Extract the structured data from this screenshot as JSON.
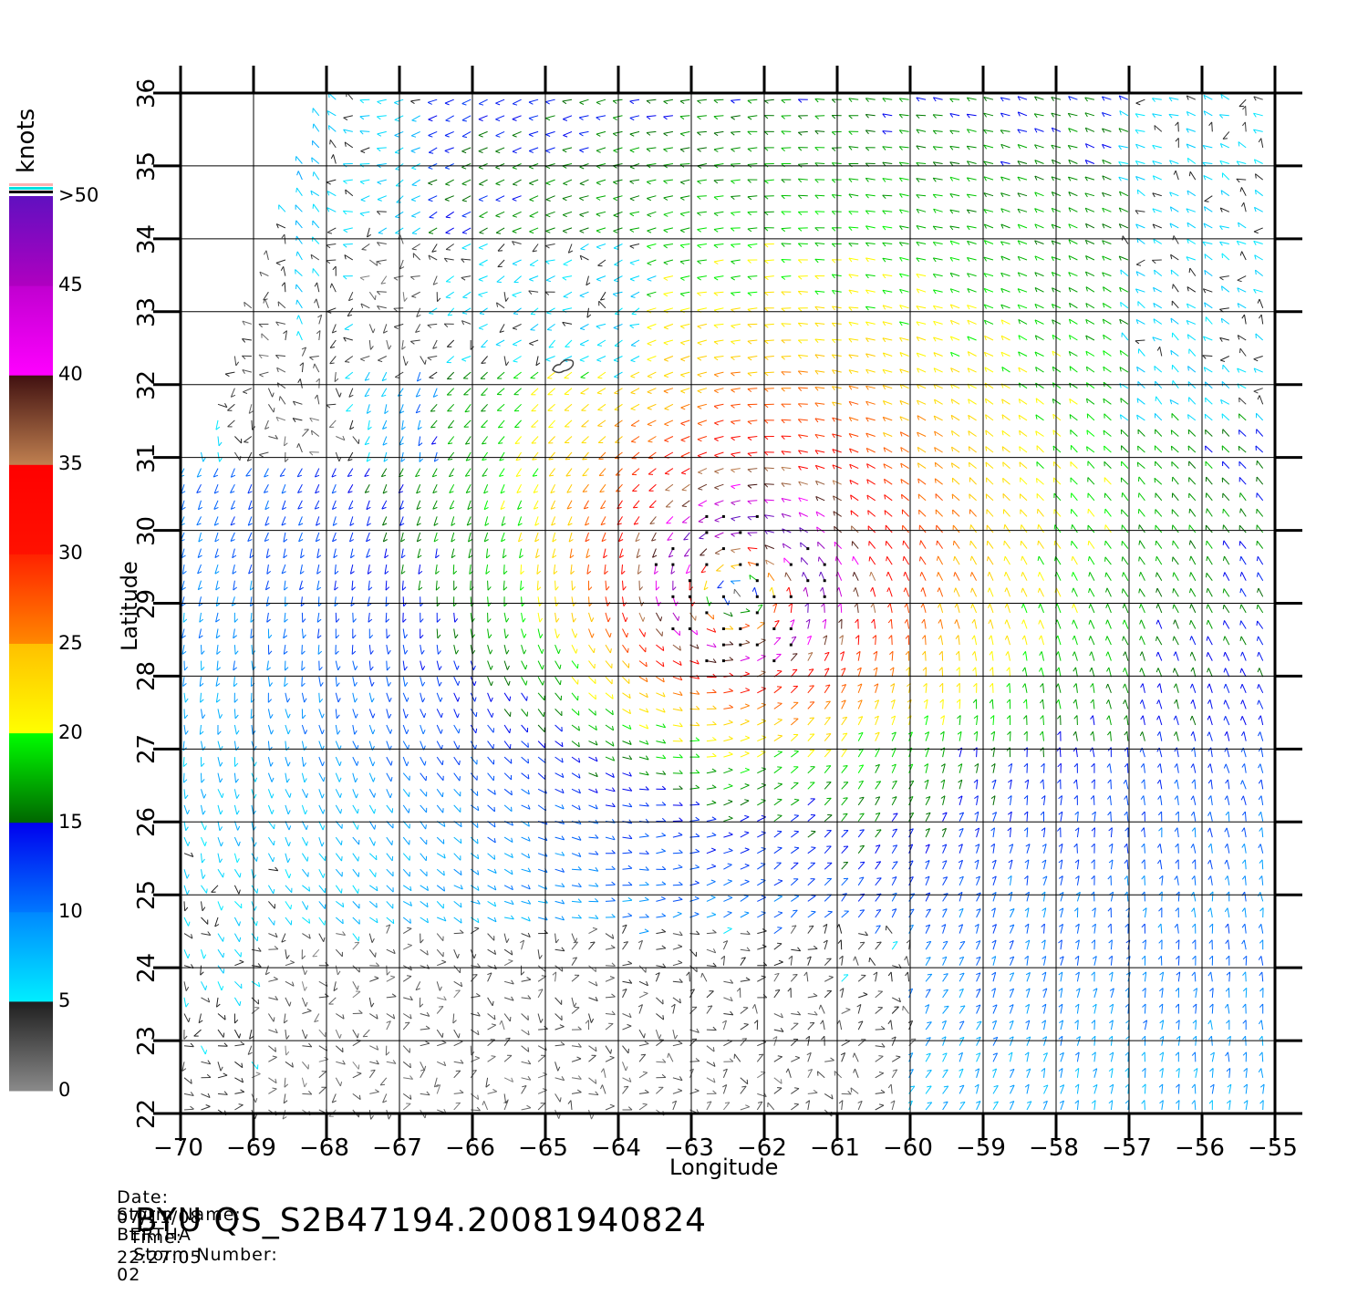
{
  "axes": {
    "x_label": "Longitude",
    "y_label": "Latitude",
    "x_ticks": [
      "-70",
      "-69",
      "-68",
      "-67",
      "-66",
      "-65",
      "-64",
      "-63",
      "-62",
      "-61",
      "-60",
      "-59",
      "-58",
      "-57",
      "-56",
      "-55"
    ],
    "y_ticks": [
      "22",
      "23",
      "24",
      "25",
      "26",
      "27",
      "28",
      "29",
      "30",
      "31",
      "32",
      "33",
      "34",
      "35",
      "36"
    ],
    "lon_range": [
      -70,
      -55
    ],
    "lat_range": [
      22,
      36
    ],
    "grid": true
  },
  "colorbar": {
    "unit": "knots",
    "labels": [
      "0",
      "5",
      "10",
      "15",
      "20",
      "25",
      "30",
      "35",
      "40",
      "45",
      ">50"
    ],
    "bands": [
      {
        "from": 0,
        "to": 5,
        "colors": [
          "#8a8a8a",
          "#1e1e1e"
        ]
      },
      {
        "from": 5,
        "to": 10,
        "colors": [
          "#00eeff",
          "#0088ff"
        ]
      },
      {
        "from": 10,
        "to": 15,
        "colors": [
          "#0077ff",
          "#0000ee"
        ]
      },
      {
        "from": 15,
        "to": 20,
        "colors": [
          "#006600",
          "#00ff00"
        ]
      },
      {
        "from": 20,
        "to": 25,
        "colors": [
          "#ffff00",
          "#ffc000"
        ]
      },
      {
        "from": 25,
        "to": 30,
        "colors": [
          "#ff8800",
          "#ff2200"
        ]
      },
      {
        "from": 30,
        "to": 35,
        "colors": [
          "#ff1100",
          "#ff0000"
        ]
      },
      {
        "from": 35,
        "to": 40,
        "colors": [
          "#c08050",
          "#401010"
        ]
      },
      {
        "from": 40,
        "to": 45,
        "colors": [
          "#ff00ff",
          "#c000d0"
        ]
      },
      {
        "from": 45,
        "to": 50,
        "colors": [
          "#b000c0",
          "#6010c0"
        ]
      }
    ],
    "overflow_colors": [
      "#ffb0b0",
      "#00e0e0",
      "#000000"
    ]
  },
  "wind_field": {
    "storm_center": {
      "lon": -62.3,
      "lat": 29.2
    },
    "max_speed_kt": 50,
    "rain_flag_color": "#000000"
  },
  "island": {
    "name_visible": false,
    "lon": -64.75,
    "lat": 32.3
  },
  "info": {
    "date_label": "Date:",
    "date": "07/11/08",
    "time_label": "Time:",
    "time": "22:27:05",
    "storm_name_label": "Storm Name:",
    "storm_name": "BERTHA",
    "storm_number_label": "Storm Number:",
    "storm_number": "02",
    "product": "BYU QS_S2B47194.20081940824"
  }
}
